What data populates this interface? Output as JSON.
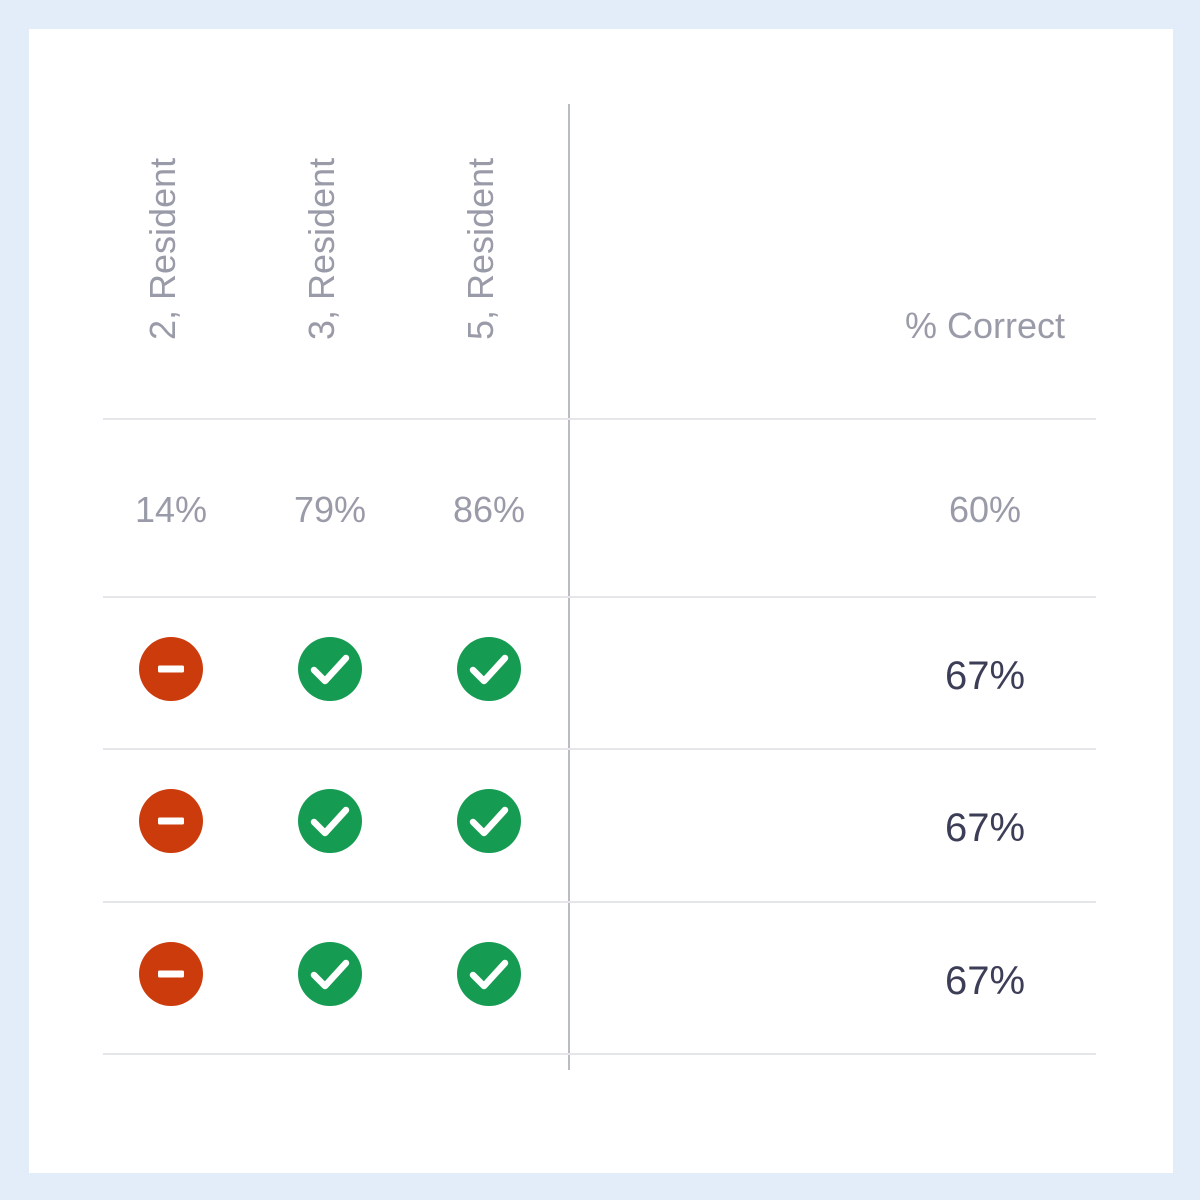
{
  "colors": {
    "incorrect": "#cc3b0c",
    "correct": "#169b52",
    "background": "#e3edf9",
    "divider": "#b9bcc3",
    "row_line": "#e4e6ea",
    "muted_text": "#9a9ba8",
    "strong_text": "#3c3d57"
  },
  "table": {
    "columns": [
      {
        "label": "2, Resident",
        "average": "14%"
      },
      {
        "label": "3, Resident",
        "average": "79%"
      },
      {
        "label": "5, Resident",
        "average": "86%"
      }
    ],
    "summary_header": "% Correct",
    "summary_average": "60%",
    "rows": [
      {
        "results": [
          "incorrect-icon",
          "correct-icon",
          "correct-icon"
        ],
        "percent_correct": "67%"
      },
      {
        "results": [
          "incorrect-icon",
          "correct-icon",
          "correct-icon"
        ],
        "percent_correct": "67%"
      },
      {
        "results": [
          "incorrect-icon",
          "correct-icon",
          "correct-icon"
        ],
        "percent_correct": "67%"
      }
    ]
  }
}
